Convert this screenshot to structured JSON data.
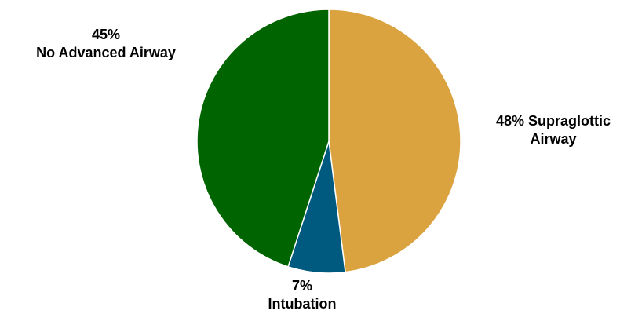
{
  "chart_data": {
    "type": "pie",
    "categories": [
      "Supraglottic Airway",
      "Intubation",
      "No Advanced Airway"
    ],
    "values": [
      48,
      7,
      45
    ],
    "value_labels": [
      "48%",
      "7%",
      "45%"
    ],
    "colors": [
      "#DAA33F",
      "#005A7F",
      "#006400"
    ]
  }
}
